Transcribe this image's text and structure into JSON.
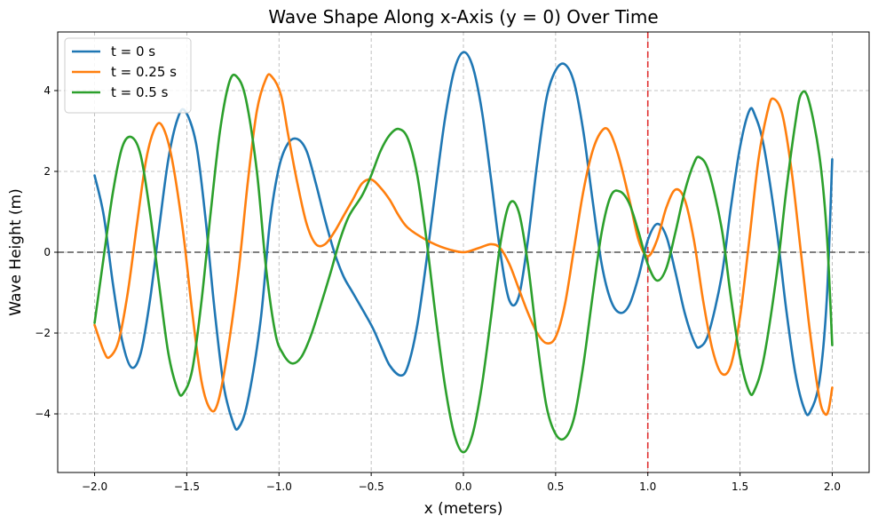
{
  "chart_data": {
    "type": "line",
    "title": "Wave Shape Along x-Axis (y = 0) Over Time",
    "xlabel": "x (meters)",
    "ylabel": "Wave Height (m)",
    "xlim": [
      -2.2,
      2.2
    ],
    "ylim": [
      -5.45,
      5.45
    ],
    "grid": true,
    "legend_position": "top-left",
    "x_ticks": [
      {
        "value": -2.0,
        "label": "−2.0"
      },
      {
        "value": -1.5,
        "label": "−1.5"
      },
      {
        "value": -1.0,
        "label": "−1.0"
      },
      {
        "value": -0.5,
        "label": "−0.5"
      },
      {
        "value": 0.0,
        "label": "0.0"
      },
      {
        "value": 0.5,
        "label": "0.5"
      },
      {
        "value": 1.0,
        "label": "1.0"
      },
      {
        "value": 1.5,
        "label": "1.5"
      },
      {
        "value": 2.0,
        "label": "2.0"
      }
    ],
    "y_ticks": [
      {
        "value": -4,
        "label": "−4"
      },
      {
        "value": -2,
        "label": "−2"
      },
      {
        "value": 0,
        "label": "0"
      },
      {
        "value": 2,
        "label": "2"
      },
      {
        "value": 4,
        "label": "4"
      }
    ],
    "reference_lines": [
      {
        "orientation": "horizontal",
        "value": 0,
        "color": "#555555",
        "style": "dashed"
      },
      {
        "orientation": "vertical",
        "value": 1.0,
        "color": "#e03030",
        "style": "dashed"
      }
    ],
    "series": [
      {
        "name": "t = 0 s",
        "color": "#1f77b4",
        "points": [
          [
            -2.0,
            1.9
          ],
          [
            -1.95,
            0.9
          ],
          [
            -1.9,
            -0.8
          ],
          [
            -1.85,
            -2.2
          ],
          [
            -1.8,
            -2.85
          ],
          [
            -1.75,
            -2.5
          ],
          [
            -1.7,
            -1.2
          ],
          [
            -1.65,
            0.6
          ],
          [
            -1.6,
            2.3
          ],
          [
            -1.55,
            3.3
          ],
          [
            -1.51,
            3.5
          ],
          [
            -1.45,
            2.7
          ],
          [
            -1.4,
            0.9
          ],
          [
            -1.35,
            -1.4
          ],
          [
            -1.3,
            -3.3
          ],
          [
            -1.25,
            -4.2
          ],
          [
            -1.22,
            -4.35
          ],
          [
            -1.17,
            -3.7
          ],
          [
            -1.1,
            -1.7
          ],
          [
            -1.05,
            0.7
          ],
          [
            -1.0,
            2.1
          ],
          [
            -0.95,
            2.7
          ],
          [
            -0.9,
            2.8
          ],
          [
            -0.85,
            2.5
          ],
          [
            -0.8,
            1.7
          ],
          [
            -0.75,
            0.8
          ],
          [
            -0.7,
            0.0
          ],
          [
            -0.65,
            -0.6
          ],
          [
            -0.6,
            -1.0
          ],
          [
            -0.5,
            -1.8
          ],
          [
            -0.45,
            -2.3
          ],
          [
            -0.4,
            -2.8
          ],
          [
            -0.34,
            -3.05
          ],
          [
            -0.3,
            -2.8
          ],
          [
            -0.25,
            -1.8
          ],
          [
            -0.2,
            -0.2
          ],
          [
            -0.15,
            1.6
          ],
          [
            -0.1,
            3.3
          ],
          [
            -0.05,
            4.5
          ],
          [
            0.0,
            4.95
          ],
          [
            0.05,
            4.6
          ],
          [
            0.1,
            3.5
          ],
          [
            0.15,
            1.8
          ],
          [
            0.2,
            0.0
          ],
          [
            0.25,
            -1.2
          ],
          [
            0.3,
            -1.1
          ],
          [
            0.35,
            0.3
          ],
          [
            0.4,
            2.2
          ],
          [
            0.45,
            3.8
          ],
          [
            0.5,
            4.5
          ],
          [
            0.55,
            4.65
          ],
          [
            0.6,
            4.2
          ],
          [
            0.65,
            3.0
          ],
          [
            0.7,
            1.3
          ],
          [
            0.75,
            -0.3
          ],
          [
            0.8,
            -1.2
          ],
          [
            0.85,
            -1.5
          ],
          [
            0.9,
            -1.3
          ],
          [
            0.95,
            -0.6
          ],
          [
            1.0,
            0.3
          ],
          [
            1.05,
            0.7
          ],
          [
            1.1,
            0.4
          ],
          [
            1.15,
            -0.5
          ],
          [
            1.2,
            -1.5
          ],
          [
            1.25,
            -2.2
          ],
          [
            1.28,
            -2.35
          ],
          [
            1.33,
            -2.0
          ],
          [
            1.4,
            -0.6
          ],
          [
            1.45,
            1.1
          ],
          [
            1.5,
            2.6
          ],
          [
            1.55,
            3.5
          ],
          [
            1.58,
            3.4
          ],
          [
            1.63,
            2.6
          ],
          [
            1.7,
            0.5
          ],
          [
            1.75,
            -1.4
          ],
          [
            1.8,
            -3.0
          ],
          [
            1.85,
            -3.9
          ],
          [
            1.88,
            -3.95
          ],
          [
            1.93,
            -3.2
          ],
          [
            1.97,
            -1.2
          ],
          [
            2.0,
            2.3
          ]
        ]
      },
      {
        "name": "t = 0.25 s",
        "color": "#ff7f0e",
        "points": [
          [
            -2.0,
            -1.8
          ],
          [
            -1.95,
            -2.45
          ],
          [
            -1.92,
            -2.6
          ],
          [
            -1.87,
            -2.2
          ],
          [
            -1.82,
            -1.0
          ],
          [
            -1.77,
            0.7
          ],
          [
            -1.72,
            2.3
          ],
          [
            -1.67,
            3.1
          ],
          [
            -1.63,
            3.1
          ],
          [
            -1.58,
            2.3
          ],
          [
            -1.52,
            0.5
          ],
          [
            -1.47,
            -1.5
          ],
          [
            -1.42,
            -3.2
          ],
          [
            -1.37,
            -3.9
          ],
          [
            -1.33,
            -3.7
          ],
          [
            -1.28,
            -2.5
          ],
          [
            -1.22,
            -0.5
          ],
          [
            -1.17,
            1.7
          ],
          [
            -1.12,
            3.5
          ],
          [
            -1.07,
            4.3
          ],
          [
            -1.04,
            4.35
          ],
          [
            -0.99,
            3.9
          ],
          [
            -0.95,
            2.9
          ],
          [
            -0.9,
            1.7
          ],
          [
            -0.85,
            0.7
          ],
          [
            -0.8,
            0.2
          ],
          [
            -0.75,
            0.2
          ],
          [
            -0.7,
            0.5
          ],
          [
            -0.65,
            0.9
          ],
          [
            -0.6,
            1.3
          ],
          [
            -0.55,
            1.7
          ],
          [
            -0.5,
            1.8
          ],
          [
            -0.45,
            1.6
          ],
          [
            -0.4,
            1.3
          ],
          [
            -0.35,
            0.9
          ],
          [
            -0.3,
            0.6
          ],
          [
            -0.2,
            0.3
          ],
          [
            -0.1,
            0.1
          ],
          [
            0.0,
            0.0
          ],
          [
            0.08,
            0.1
          ],
          [
            0.15,
            0.2
          ],
          [
            0.2,
            0.1
          ],
          [
            0.25,
            -0.3
          ],
          [
            0.3,
            -0.9
          ],
          [
            0.35,
            -1.5
          ],
          [
            0.4,
            -2.0
          ],
          [
            0.45,
            -2.25
          ],
          [
            0.5,
            -2.1
          ],
          [
            0.55,
            -1.3
          ],
          [
            0.6,
            0.1
          ],
          [
            0.65,
            1.5
          ],
          [
            0.7,
            2.5
          ],
          [
            0.75,
            3.0
          ],
          [
            0.79,
            3.0
          ],
          [
            0.84,
            2.4
          ],
          [
            0.9,
            1.3
          ],
          [
            0.95,
            0.3
          ],
          [
            1.0,
            -0.1
          ],
          [
            1.05,
            0.3
          ],
          [
            1.1,
            1.1
          ],
          [
            1.15,
            1.55
          ],
          [
            1.2,
            1.3
          ],
          [
            1.25,
            0.3
          ],
          [
            1.3,
            -1.2
          ],
          [
            1.35,
            -2.4
          ],
          [
            1.4,
            -3.0
          ],
          [
            1.45,
            -2.8
          ],
          [
            1.5,
            -1.6
          ],
          [
            1.55,
            0.3
          ],
          [
            1.6,
            2.3
          ],
          [
            1.65,
            3.5
          ],
          [
            1.68,
            3.8
          ],
          [
            1.73,
            3.4
          ],
          [
            1.78,
            2.0
          ],
          [
            1.83,
            0.0
          ],
          [
            1.88,
            -2.0
          ],
          [
            1.93,
            -3.6
          ],
          [
            1.96,
            -4.0
          ],
          [
            1.98,
            -3.9
          ],
          [
            2.0,
            -3.35
          ]
        ]
      },
      {
        "name": "t = 0.5 s",
        "color": "#2ca02c",
        "points": [
          [
            -2.0,
            -1.75
          ],
          [
            -1.95,
            -0.1
          ],
          [
            -1.9,
            1.5
          ],
          [
            -1.85,
            2.6
          ],
          [
            -1.8,
            2.85
          ],
          [
            -1.75,
            2.4
          ],
          [
            -1.7,
            1.0
          ],
          [
            -1.65,
            -0.8
          ],
          [
            -1.6,
            -2.5
          ],
          [
            -1.55,
            -3.4
          ],
          [
            -1.52,
            -3.5
          ],
          [
            -1.47,
            -2.9
          ],
          [
            -1.42,
            -1.2
          ],
          [
            -1.37,
            1.0
          ],
          [
            -1.32,
            3.0
          ],
          [
            -1.27,
            4.2
          ],
          [
            -1.23,
            4.35
          ],
          [
            -1.18,
            3.8
          ],
          [
            -1.12,
            2.0
          ],
          [
            -1.07,
            -0.4
          ],
          [
            -1.02,
            -2.0
          ],
          [
            -0.98,
            -2.5
          ],
          [
            -0.93,
            -2.75
          ],
          [
            -0.88,
            -2.6
          ],
          [
            -0.83,
            -2.1
          ],
          [
            -0.78,
            -1.4
          ],
          [
            -0.72,
            -0.5
          ],
          [
            -0.67,
            0.3
          ],
          [
            -0.62,
            0.9
          ],
          [
            -0.55,
            1.4
          ],
          [
            -0.5,
            1.9
          ],
          [
            -0.45,
            2.5
          ],
          [
            -0.4,
            2.9
          ],
          [
            -0.35,
            3.05
          ],
          [
            -0.3,
            2.8
          ],
          [
            -0.25,
            1.9
          ],
          [
            -0.2,
            0.3
          ],
          [
            -0.15,
            -1.6
          ],
          [
            -0.1,
            -3.3
          ],
          [
            -0.05,
            -4.5
          ],
          [
            0.0,
            -4.95
          ],
          [
            0.05,
            -4.5
          ],
          [
            0.1,
            -3.3
          ],
          [
            0.15,
            -1.6
          ],
          [
            0.2,
            0.2
          ],
          [
            0.25,
            1.2
          ],
          [
            0.3,
            1.0
          ],
          [
            0.35,
            -0.3
          ],
          [
            0.4,
            -2.2
          ],
          [
            0.45,
            -3.8
          ],
          [
            0.5,
            -4.5
          ],
          [
            0.55,
            -4.6
          ],
          [
            0.6,
            -4.1
          ],
          [
            0.65,
            -2.8
          ],
          [
            0.7,
            -1.1
          ],
          [
            0.75,
            0.5
          ],
          [
            0.8,
            1.4
          ],
          [
            0.85,
            1.5
          ],
          [
            0.9,
            1.2
          ],
          [
            0.95,
            0.5
          ],
          [
            1.0,
            -0.3
          ],
          [
            1.05,
            -0.7
          ],
          [
            1.1,
            -0.4
          ],
          [
            1.15,
            0.5
          ],
          [
            1.2,
            1.5
          ],
          [
            1.25,
            2.2
          ],
          [
            1.28,
            2.35
          ],
          [
            1.33,
            2.0
          ],
          [
            1.4,
            0.6
          ],
          [
            1.45,
            -1.1
          ],
          [
            1.5,
            -2.6
          ],
          [
            1.55,
            -3.45
          ],
          [
            1.58,
            -3.4
          ],
          [
            1.63,
            -2.6
          ],
          [
            1.7,
            -0.5
          ],
          [
            1.75,
            1.5
          ],
          [
            1.8,
            3.2
          ],
          [
            1.83,
            3.9
          ],
          [
            1.87,
            3.8
          ],
          [
            1.93,
            2.4
          ],
          [
            1.97,
            0.5
          ],
          [
            2.0,
            -2.3
          ]
        ]
      }
    ]
  }
}
